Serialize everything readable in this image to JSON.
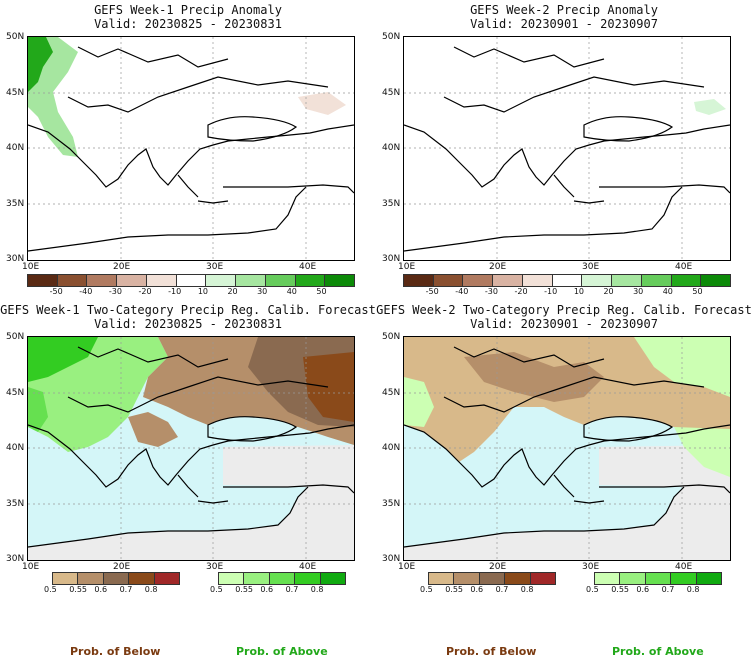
{
  "panels": [
    {
      "title": "GEFS Week-1 Precip Anomaly",
      "valid": "Valid: 20230825 - 20230831"
    },
    {
      "title": "GEFS Week-2 Precip Anomaly",
      "valid": "Valid: 20230901 - 20230907"
    },
    {
      "title": "GEFS Week-1 Two-Category Precip Reg. Calib. Forecast",
      "valid": "Valid: 20230825 - 20230831"
    },
    {
      "title": "GEFS Week-2 Two-Category Precip Reg. Calib. Forecast",
      "valid": "Valid: 20230901 - 20230907"
    }
  ],
  "axes": {
    "lat_labels": [
      "50N",
      "45N",
      "40N",
      "35N",
      "30N"
    ],
    "lon_labels": [
      "10E",
      "20E",
      "30E",
      "40E"
    ]
  },
  "anomaly_legend": {
    "labels": [
      "-50",
      "-40",
      "-30",
      "-20",
      "-10",
      "10",
      "20",
      "30",
      "40",
      "50"
    ],
    "colors": [
      "#5a2a14",
      "#8a5030",
      "#b07a60",
      "#d9b3a3",
      "#f2e1d8",
      "#ffffff",
      "#d6f5d6",
      "#a6e6a0",
      "#66cc5c",
      "#22a81a",
      "#0c8a08"
    ]
  },
  "prob_legend": {
    "labels": [
      "0.5",
      "0.55",
      "0.6",
      "0.7",
      "0.8"
    ],
    "below_colors": [
      "#d8b98a",
      "#b58f6a",
      "#8a6a50",
      "#8a4a1a",
      "#a02828"
    ],
    "above_colors": [
      "#ccffb3",
      "#99f080",
      "#66e050",
      "#33cc22",
      "#10aa10"
    ]
  },
  "footer": {
    "below": "Prob. of Below",
    "above": "Prob. of Above",
    "below_color": "#7a3a10",
    "above_color": "#22a81a"
  }
}
